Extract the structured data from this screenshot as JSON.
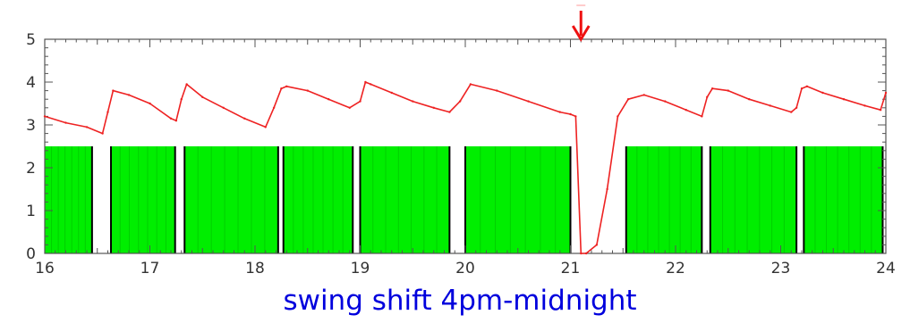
{
  "chart_data": {
    "type": "line",
    "title": "",
    "caption": "swing shift 4pm-midnight",
    "xlabel": "",
    "ylabel": "",
    "xlim": [
      16,
      24
    ],
    "ylim": [
      0,
      5
    ],
    "x_ticks": [
      "16",
      "17",
      "18",
      "19",
      "20",
      "21",
      "22",
      "23",
      "24"
    ],
    "y_ticks": [
      "0",
      "1",
      "2",
      "3",
      "4",
      "5"
    ],
    "grid": false,
    "legend": "none",
    "marker": {
      "x": 21.1,
      "label": "",
      "color": "#ee1111"
    },
    "colors": {
      "line": "#ee2222",
      "bars": "#00ee00",
      "bar_stripes": "#00aa00",
      "gap_lines": "#000000",
      "axes": "#555555",
      "caption": "#0000dd"
    },
    "shaded_intervals": {
      "level": 2.5,
      "intervals": [
        [
          16.0,
          16.45
        ],
        [
          16.63,
          17.24
        ],
        [
          17.33,
          18.22
        ],
        [
          18.27,
          18.93
        ],
        [
          19.0,
          19.85
        ],
        [
          20.0,
          21.0
        ],
        [
          21.53,
          22.25
        ],
        [
          22.33,
          23.15
        ],
        [
          23.22,
          23.97
        ]
      ]
    },
    "series": [
      {
        "x": [
          16.0,
          16.2,
          16.4,
          16.55,
          16.6,
          16.65,
          16.8,
          17.0,
          17.2,
          17.25,
          17.3,
          17.35,
          17.5,
          17.7,
          17.9,
          18.1,
          18.18,
          18.25,
          18.3,
          18.5,
          18.7,
          18.9,
          19.0,
          19.05,
          19.1,
          19.3,
          19.5,
          19.7,
          19.85,
          19.95,
          20.05,
          20.3,
          20.6,
          20.9,
          21.0,
          21.05,
          21.1,
          21.15,
          21.25,
          21.35,
          21.45,
          21.55,
          21.7,
          21.9,
          22.1,
          22.25,
          22.3,
          22.35,
          22.5,
          22.7,
          22.9,
          23.1,
          23.15,
          23.2,
          23.25,
          23.4,
          23.6,
          23.8,
          23.95,
          24.0
        ],
        "values": [
          3.2,
          3.05,
          2.95,
          2.8,
          3.3,
          3.8,
          3.7,
          3.5,
          3.15,
          3.1,
          3.6,
          3.95,
          3.65,
          3.4,
          3.15,
          2.95,
          3.4,
          3.85,
          3.9,
          3.8,
          3.6,
          3.4,
          3.55,
          4.0,
          3.95,
          3.75,
          3.55,
          3.4,
          3.3,
          3.55,
          3.95,
          3.8,
          3.55,
          3.3,
          3.25,
          3.2,
          0.0,
          0.0,
          0.2,
          1.5,
          3.2,
          3.6,
          3.7,
          3.55,
          3.35,
          3.2,
          3.65,
          3.85,
          3.8,
          3.6,
          3.45,
          3.3,
          3.4,
          3.85,
          3.9,
          3.75,
          3.6,
          3.45,
          3.35,
          3.75
        ]
      }
    ]
  }
}
